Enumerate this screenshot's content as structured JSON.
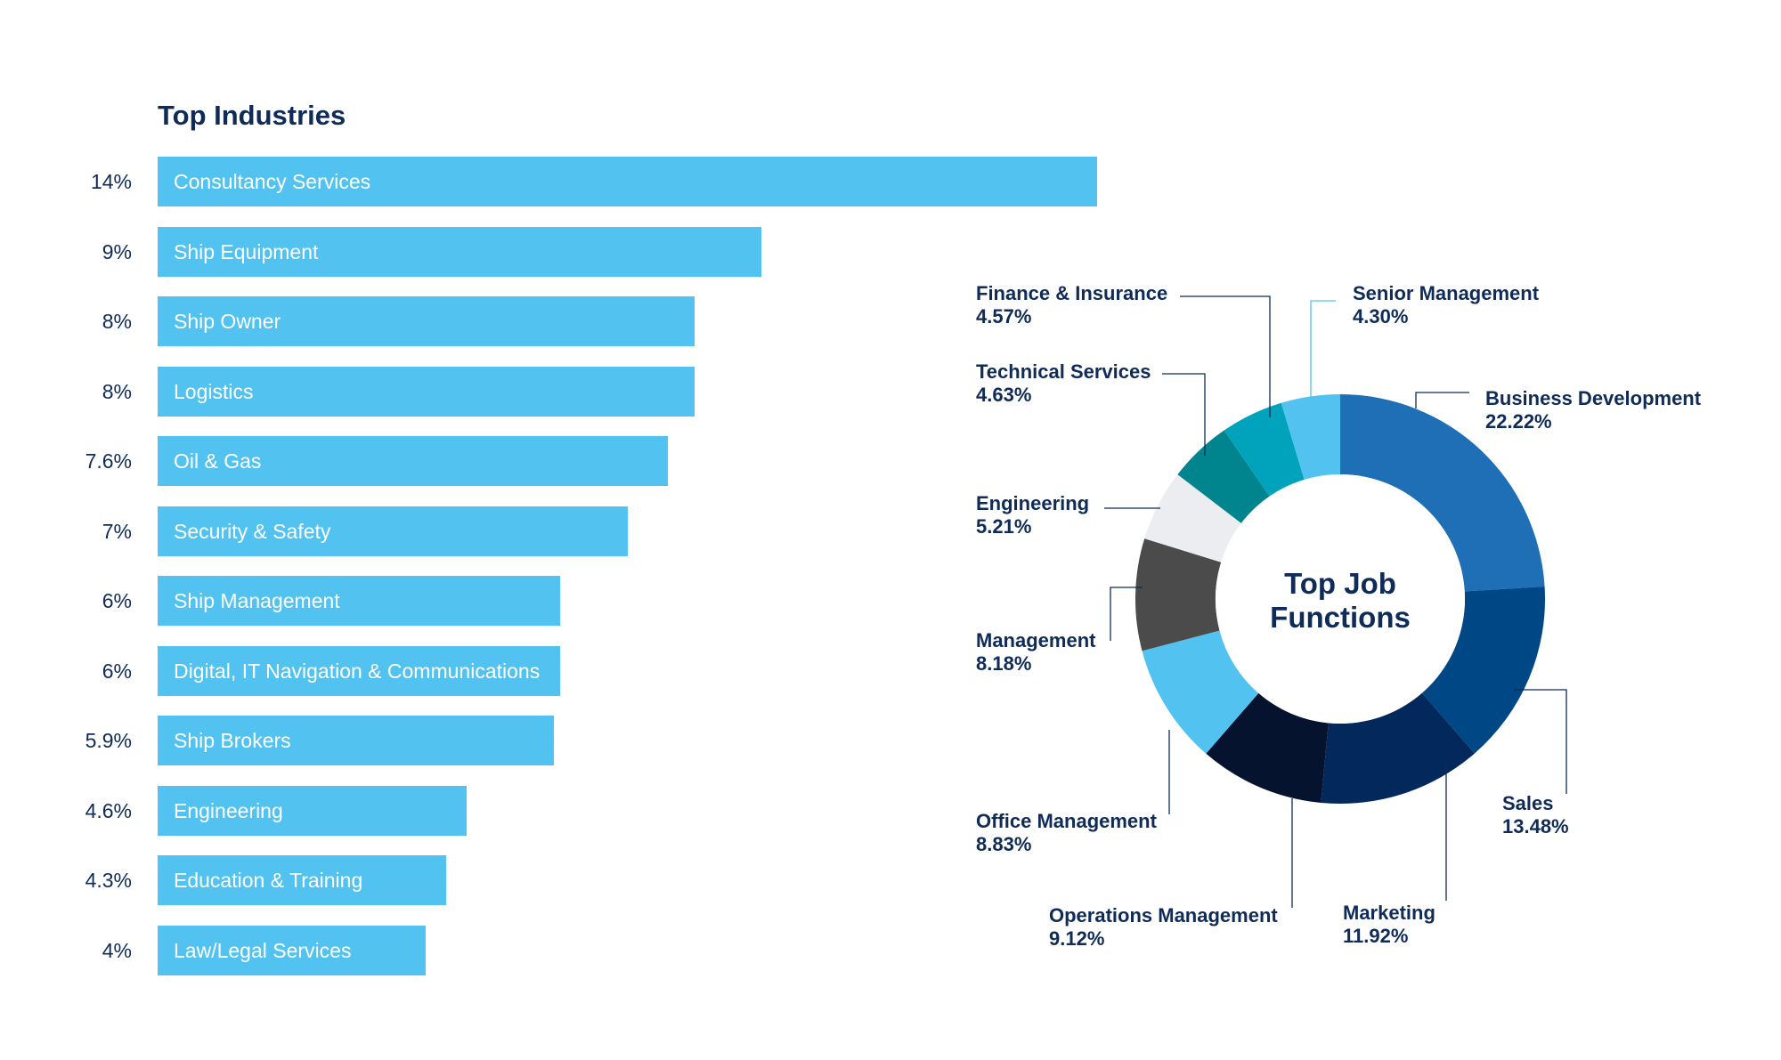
{
  "chart_data": [
    {
      "type": "bar",
      "orientation": "horizontal",
      "title": "Top Industries",
      "categories": [
        "Consultancy Services",
        "Ship Equipment",
        "Ship Owner",
        "Logistics",
        "Oil & Gas",
        "Security & Safety",
        "Ship Management",
        "Digital, IT Navigation & Communications",
        "Ship Brokers",
        "Engineering",
        "Education & Training",
        "Law/Legal Services"
      ],
      "values": [
        14,
        9,
        8,
        8,
        7.6,
        7,
        6,
        6,
        5.9,
        4.6,
        4.3,
        4
      ],
      "value_labels": [
        "14%",
        "9%",
        "8%",
        "8%",
        "7.6%",
        "7%",
        "6%",
        "6%",
        "5.9%",
        "4.6%",
        "4.3%",
        "4%"
      ],
      "bar_color": "#52c3f0"
    },
    {
      "type": "pie",
      "donut": true,
      "center_label": [
        "Top Job",
        "Functions"
      ],
      "slices": [
        {
          "name": "Business Development",
          "value": 22.22,
          "label": "22.22%",
          "color": "#1f6fb6"
        },
        {
          "name": "Sales",
          "value": 13.48,
          "label": "13.48%",
          "color": "#004786"
        },
        {
          "name": "Marketing",
          "value": 11.92,
          "label": "11.92%",
          "color": "#03285c"
        },
        {
          "name": "Operations Management",
          "value": 9.12,
          "label": "9.12%",
          "color": "#06132e"
        },
        {
          "name": "Office Management",
          "value": 8.83,
          "label": "8.83%",
          "color": "#52c3f0"
        },
        {
          "name": "Management",
          "value": 8.18,
          "label": "8.18%",
          "color": "#4b4b4b"
        },
        {
          "name": "Engineering",
          "value": 5.21,
          "label": "5.21%",
          "color": "#ebedf0"
        },
        {
          "name": "Technical Services",
          "value": 4.63,
          "label": "4.63%",
          "color": "#00848e"
        },
        {
          "name": "Finance & Insurance",
          "value": 4.57,
          "label": "4.57%",
          "color": "#00a3bb"
        },
        {
          "name": "Senior Management",
          "value": 4.3,
          "label": "4.30%",
          "color": "#52c3f0"
        }
      ]
    }
  ]
}
